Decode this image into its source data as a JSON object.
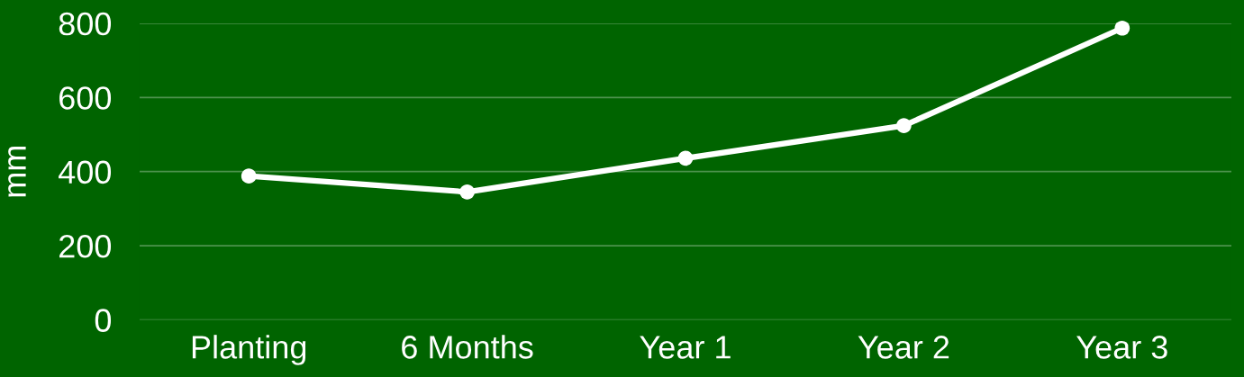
{
  "chart_data": {
    "type": "line",
    "ylabel": "mm",
    "categories": [
      "Planting",
      "6 Months",
      "Year 1",
      "Year 2",
      "Year 3"
    ],
    "series": [
      {
        "color": "#ffffff",
        "values": [
          388,
          345,
          436,
          524,
          787
        ]
      }
    ],
    "ylim": [
      0,
      800
    ],
    "yticks": [
      0,
      200,
      400,
      600,
      800
    ],
    "grid": "y",
    "legend": false,
    "marker": "circle",
    "line_style": "solid"
  }
}
